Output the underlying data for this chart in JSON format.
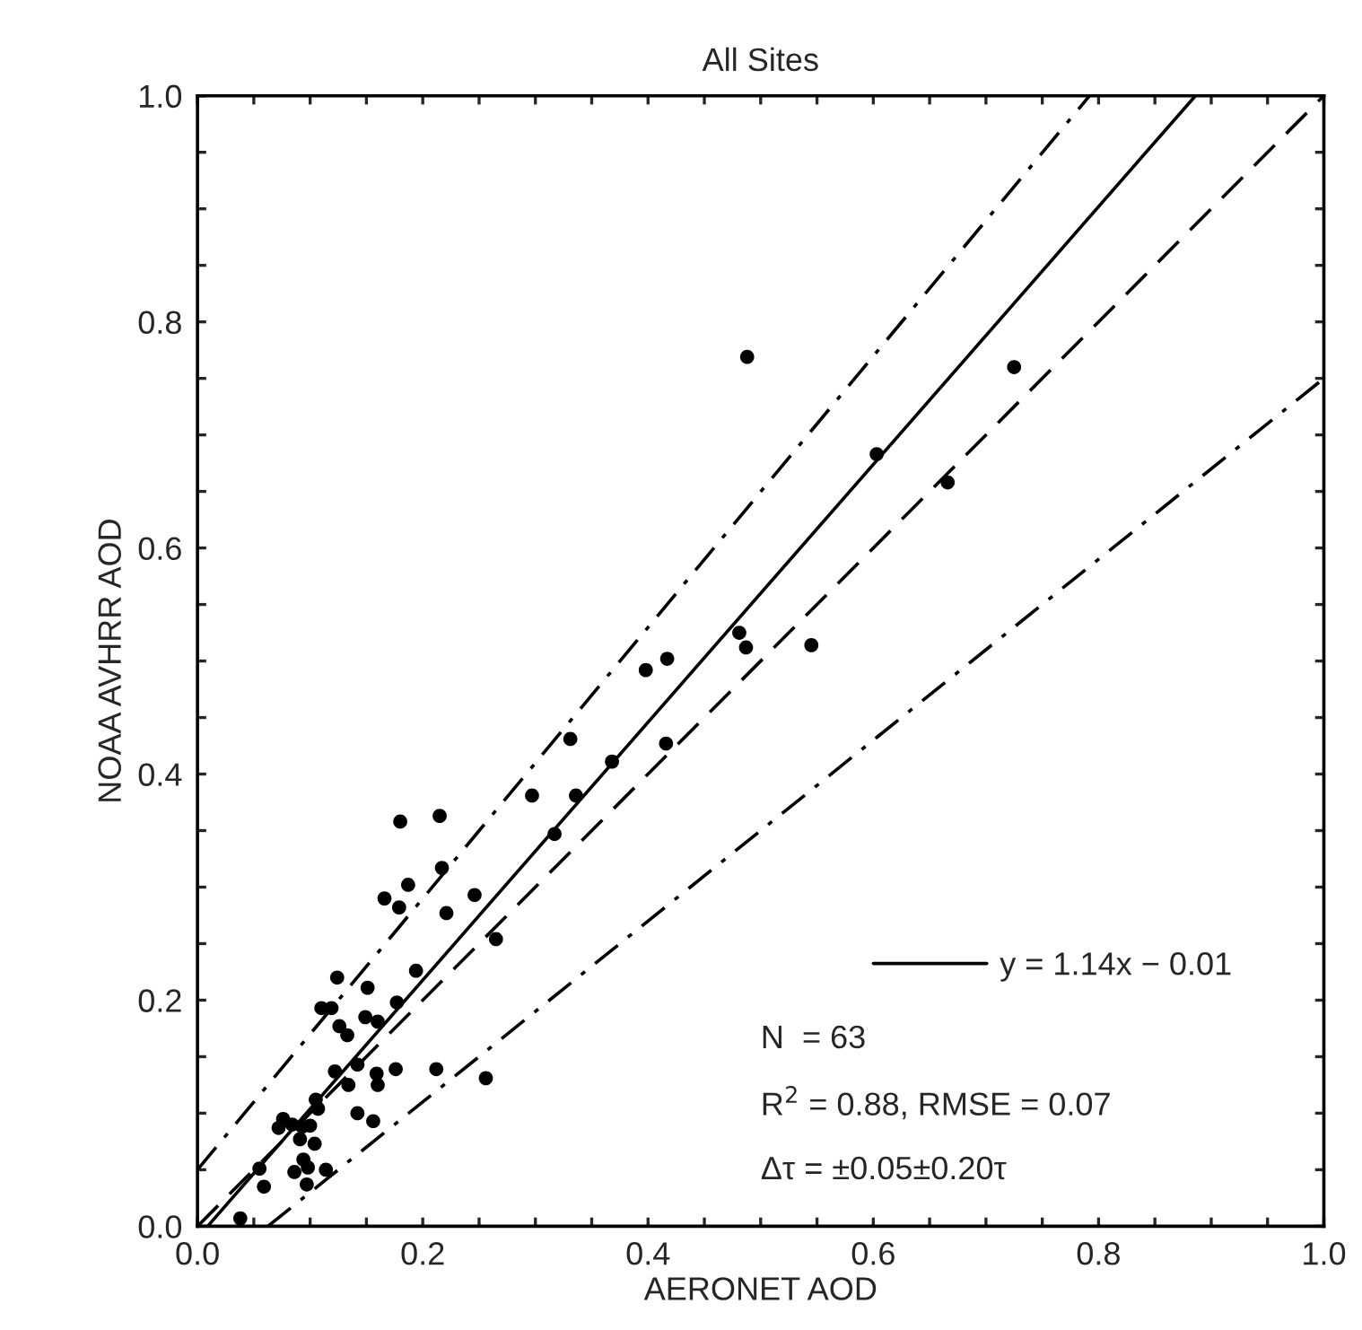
{
  "chart_data": {
    "type": "scatter",
    "title": "All Sites",
    "xlabel": "AERONET AOD",
    "ylabel": "NOAA AVHRR AOD",
    "xlim": [
      0,
      1
    ],
    "ylim": [
      0,
      1
    ],
    "xticks": [
      {
        "value": 0,
        "label": "0.0"
      },
      {
        "value": 0.05,
        "label": null
      },
      {
        "value": 0.1,
        "label": null
      },
      {
        "value": 0.15,
        "label": null
      },
      {
        "value": 0.2,
        "label": "0.2"
      },
      {
        "value": 0.25,
        "label": null
      },
      {
        "value": 0.3,
        "label": null
      },
      {
        "value": 0.35,
        "label": null
      },
      {
        "value": 0.4,
        "label": "0.4"
      },
      {
        "value": 0.45,
        "label": null
      },
      {
        "value": 0.5,
        "label": null
      },
      {
        "value": 0.55,
        "label": null
      },
      {
        "value": 0.6,
        "label": "0.6"
      },
      {
        "value": 0.65,
        "label": null
      },
      {
        "value": 0.7,
        "label": null
      },
      {
        "value": 0.75,
        "label": null
      },
      {
        "value": 0.8,
        "label": "0.8"
      },
      {
        "value": 0.85,
        "label": null
      },
      {
        "value": 0.9,
        "label": null
      },
      {
        "value": 0.95,
        "label": null
      },
      {
        "value": 1,
        "label": "1.0"
      }
    ],
    "yticks": [
      {
        "value": 0,
        "label": "0.0"
      },
      {
        "value": 0.05,
        "label": null
      },
      {
        "value": 0.1,
        "label": null
      },
      {
        "value": 0.15,
        "label": null
      },
      {
        "value": 0.2,
        "label": "0.2"
      },
      {
        "value": 0.25,
        "label": null
      },
      {
        "value": 0.3,
        "label": null
      },
      {
        "value": 0.35,
        "label": null
      },
      {
        "value": 0.4,
        "label": "0.4"
      },
      {
        "value": 0.45,
        "label": null
      },
      {
        "value": 0.5,
        "label": null
      },
      {
        "value": 0.55,
        "label": null
      },
      {
        "value": 0.6,
        "label": "0.6"
      },
      {
        "value": 0.65,
        "label": null
      },
      {
        "value": 0.7,
        "label": null
      },
      {
        "value": 0.75,
        "label": null
      },
      {
        "value": 0.8,
        "label": "0.8"
      },
      {
        "value": 0.85,
        "label": null
      },
      {
        "value": 0.9,
        "label": null
      },
      {
        "value": 0.95,
        "label": null
      },
      {
        "value": 1,
        "label": "1.0"
      }
    ],
    "grid": false,
    "legend": "bottom right",
    "series": [
      {
        "color": "#000000",
        "marker": "circle",
        "x": [
          0.488,
          0.725,
          0.603,
          0.666,
          0.481,
          0.487,
          0.545,
          0.398,
          0.417,
          0.331,
          0.416,
          0.368,
          0.336,
          0.317,
          0.297,
          0.18,
          0.215,
          0.217,
          0.187,
          0.166,
          0.179,
          0.221,
          0.246,
          0.265,
          0.124,
          0.151,
          0.194,
          0.177,
          0.11,
          0.119,
          0.149,
          0.16,
          0.126,
          0.133,
          0.142,
          0.122,
          0.134,
          0.159,
          0.16,
          0.176,
          0.212,
          0.256,
          0.105,
          0.107,
          0.142,
          0.156,
          0.076,
          0.072,
          0.084,
          0.093,
          0.1,
          0.091,
          0.104,
          0.094,
          0.098,
          0.086,
          0.114,
          0.055,
          0.059,
          0.097,
          0.038
        ],
        "values": [
          0.769,
          0.76,
          0.683,
          0.658,
          0.525,
          0.512,
          0.514,
          0.492,
          0.502,
          0.431,
          0.427,
          0.411,
          0.381,
          0.347,
          0.381,
          0.358,
          0.363,
          0.317,
          0.302,
          0.29,
          0.282,
          0.277,
          0.293,
          0.254,
          0.22,
          0.211,
          0.226,
          0.198,
          0.193,
          0.193,
          0.185,
          0.181,
          0.177,
          0.169,
          0.143,
          0.137,
          0.125,
          0.135,
          0.125,
          0.139,
          0.139,
          0.131,
          0.112,
          0.104,
          0.1,
          0.093,
          0.095,
          0.087,
          0.09,
          0.088,
          0.089,
          0.077,
          0.073,
          0.059,
          0.052,
          0.048,
          0.05,
          0.051,
          0.035,
          0.037,
          0.007
        ]
      },
      {
        "type": "line",
        "name": "y = 1.14x − 0.01",
        "color": "#000000",
        "line_style": "solid",
        "marker": "none",
        "x": [
          0.009,
          0.886
        ],
        "values": [
          0.0,
          1.0
        ]
      },
      {
        "type": "line",
        "color": "#000000",
        "line_style": "dashed",
        "marker": "none",
        "x": [
          0,
          1
        ],
        "values": [
          0,
          1
        ]
      },
      {
        "type": "line",
        "color": "#000000",
        "line_style": "dashdot",
        "marker": "none",
        "x": [
          0,
          0.792
        ],
        "values": [
          0.05,
          1.0
        ]
      },
      {
        "type": "line",
        "color": "#000000",
        "line_style": "dashdot",
        "marker": "none",
        "x": [
          0.0625,
          1.0
        ],
        "values": [
          0,
          0.75
        ]
      }
    ],
    "annotations": [
      "N  = 63",
      "R$^{2}$ = 0.88, RMSE = 0.07",
      "Δτ = ±0.05±0.20τ"
    ]
  }
}
